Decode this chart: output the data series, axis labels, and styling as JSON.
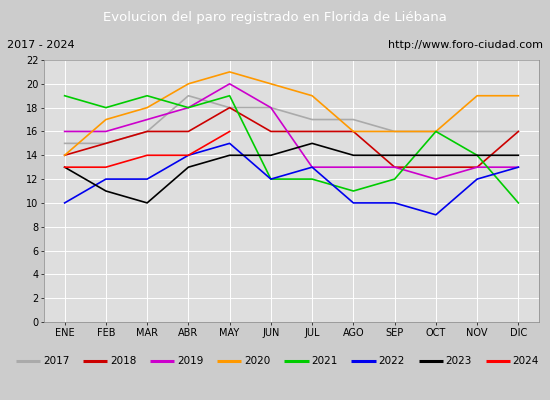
{
  "title": "Evolucion del paro registrado en Florida de Liébana",
  "subtitle_left": "2017 - 2024",
  "subtitle_right": "http://www.foro-ciudad.com",
  "title_bg_color": "#3a6abf",
  "title_text_color": "#ffffff",
  "subtitle_bg_color": "#e0e0e0",
  "plot_bg_color": "#dedede",
  "legend_bg_color": "#eeeeee",
  "months": [
    "ENE",
    "FEB",
    "MAR",
    "ABR",
    "MAY",
    "JUN",
    "JUL",
    "AGO",
    "SEP",
    "OCT",
    "NOV",
    "DIC"
  ],
  "ylim": [
    0,
    22
  ],
  "yticks": [
    0,
    2,
    4,
    6,
    8,
    10,
    12,
    14,
    16,
    18,
    20,
    22
  ],
  "series_colors": {
    "2017": "#aaaaaa",
    "2018": "#cc0000",
    "2019": "#cc00cc",
    "2020": "#ff9900",
    "2021": "#00cc00",
    "2022": "#0000ee",
    "2023": "#000000",
    "2024": "#ff0000"
  },
  "series_data": {
    "2017": [
      15,
      15,
      16,
      19,
      18,
      18,
      17,
      17,
      16,
      16,
      16,
      16
    ],
    "2018": [
      14,
      15,
      16,
      16,
      18,
      16,
      16,
      16,
      13,
      13,
      13,
      16
    ],
    "2019": [
      16,
      16,
      17,
      18,
      20,
      18,
      13,
      13,
      13,
      12,
      13,
      13
    ],
    "2020": [
      14,
      17,
      18,
      20,
      21,
      20,
      19,
      16,
      16,
      16,
      19,
      19
    ],
    "2021": [
      19,
      18,
      19,
      18,
      19,
      12,
      12,
      11,
      12,
      16,
      14,
      10
    ],
    "2022": [
      10,
      12,
      12,
      14,
      15,
      12,
      13,
      10,
      10,
      9,
      12,
      13
    ],
    "2023": [
      13,
      11,
      10,
      13,
      14,
      14,
      15,
      14,
      14,
      14,
      14,
      14
    ],
    "2024": [
      13,
      13,
      14,
      14,
      16,
      null,
      null,
      null,
      null,
      null,
      null,
      null
    ]
  }
}
